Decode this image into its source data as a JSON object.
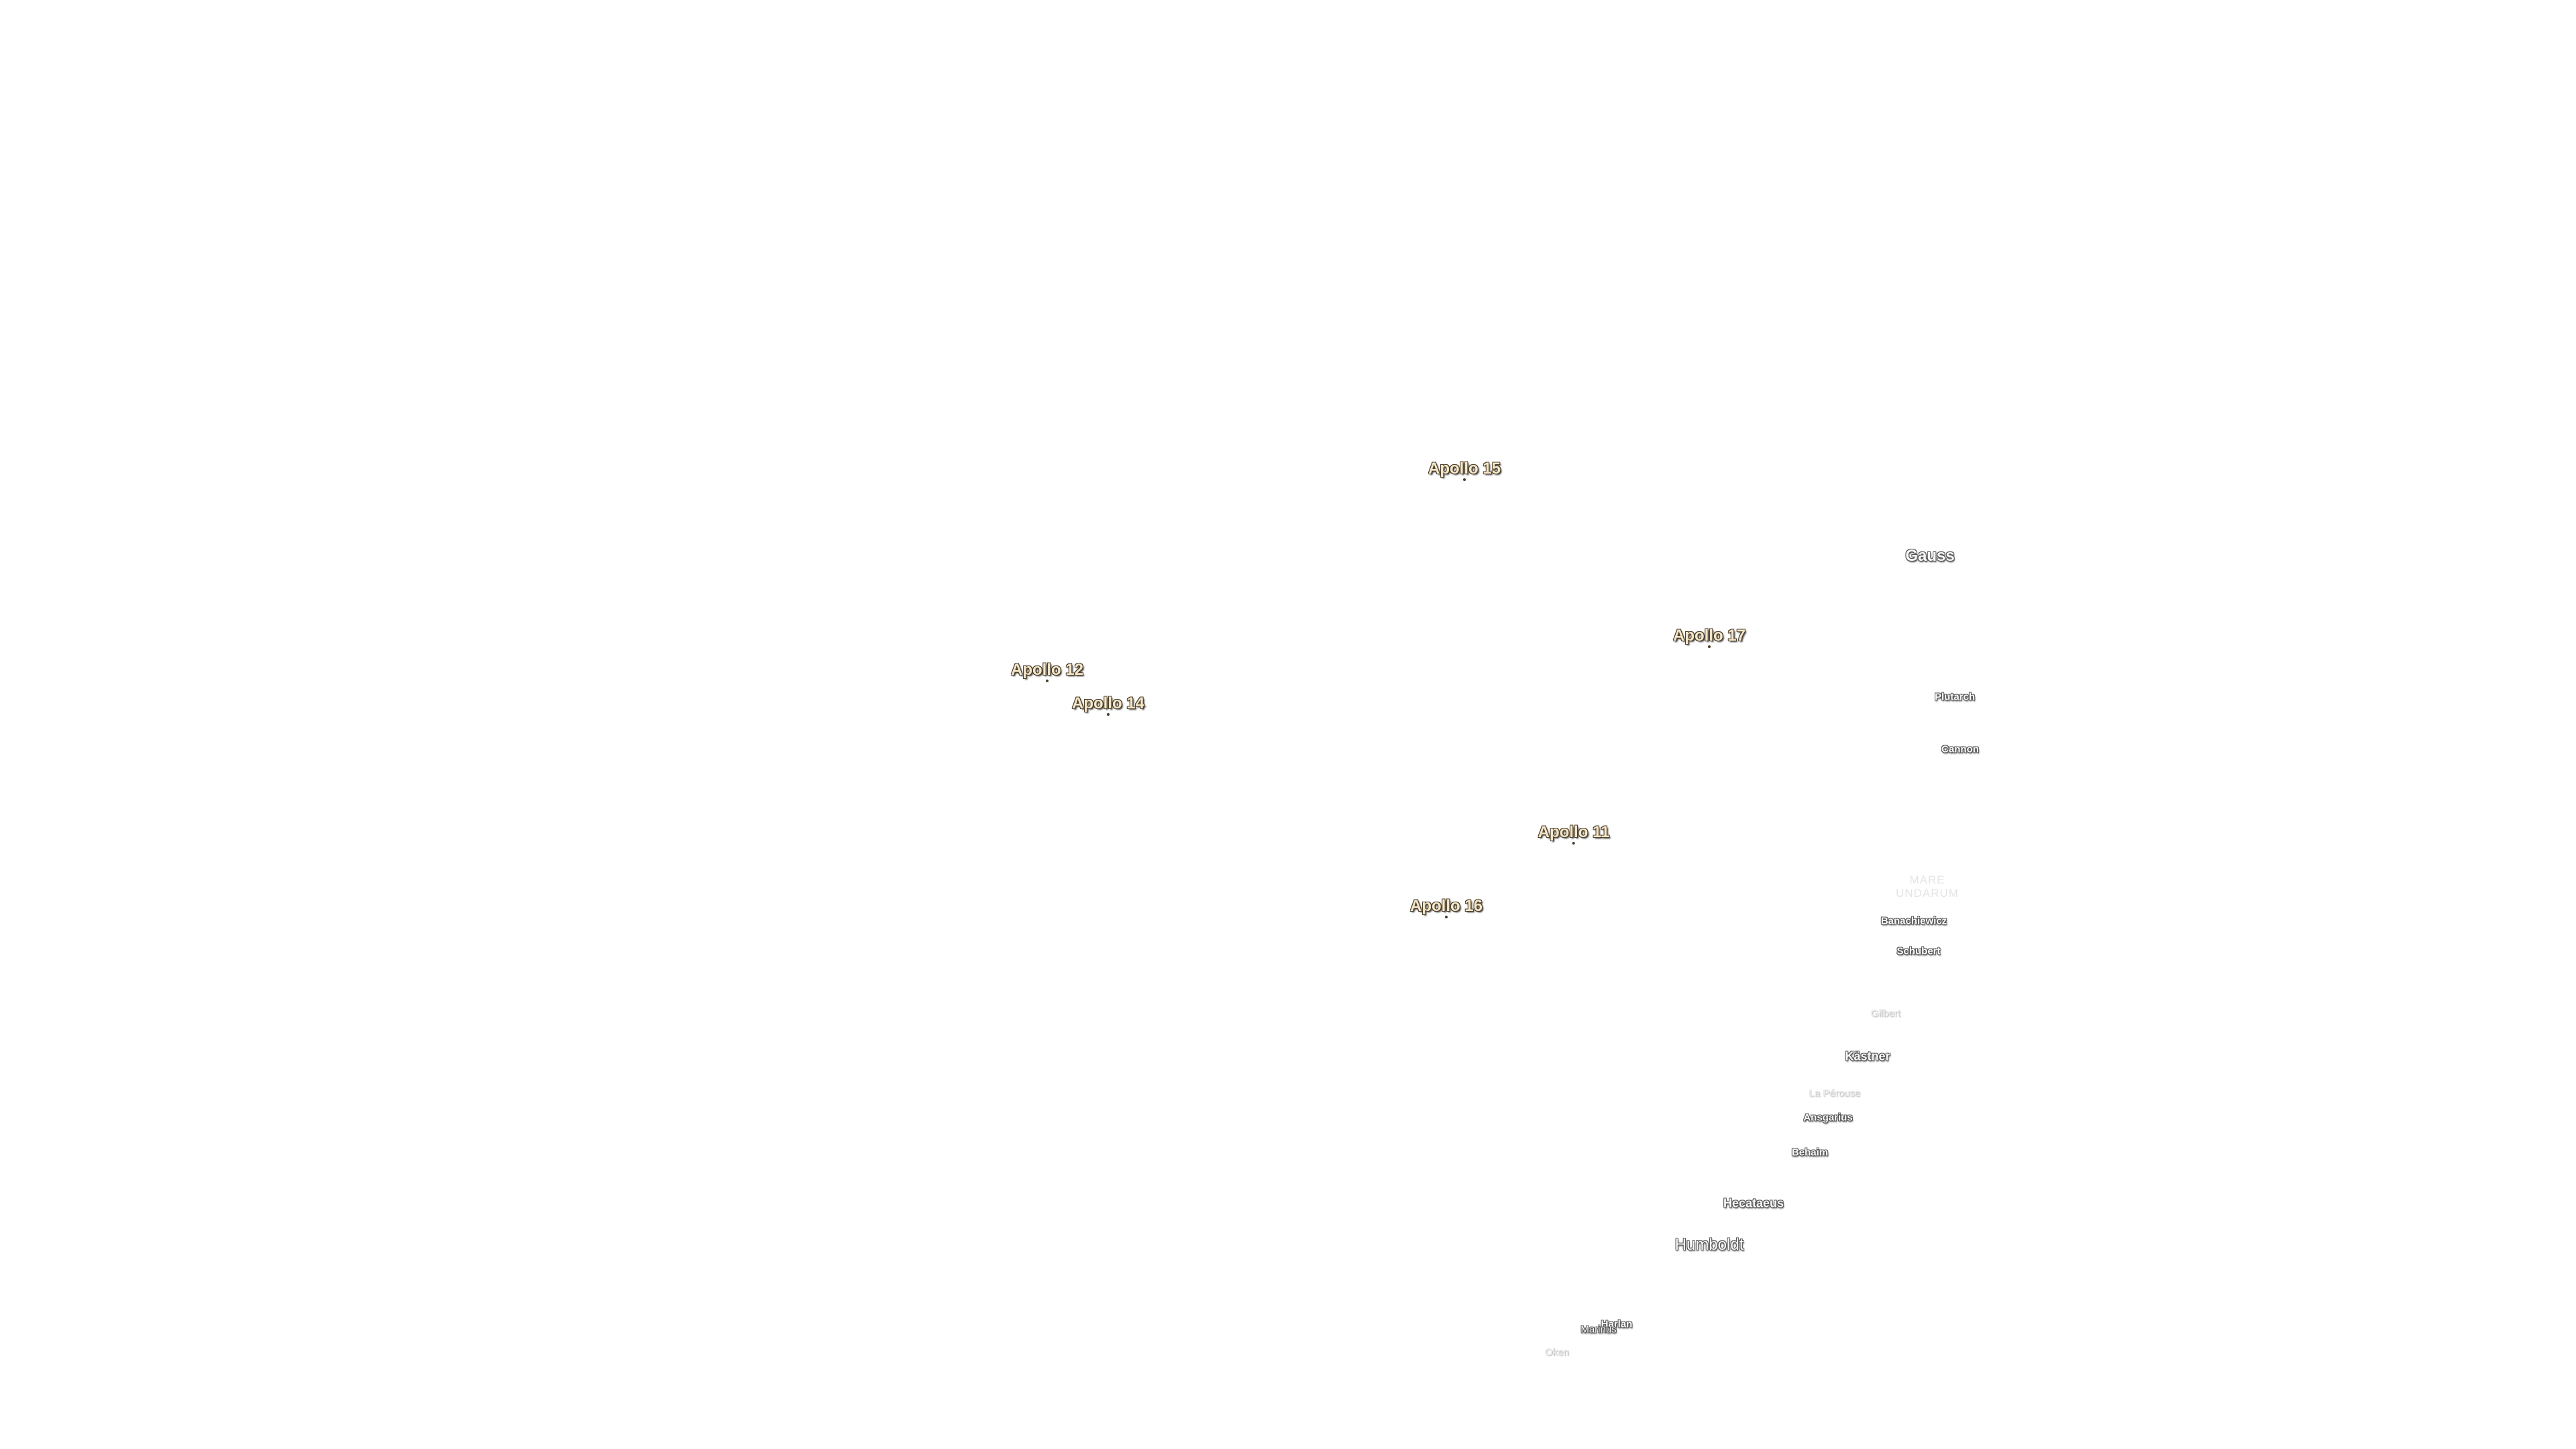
{
  "landing_sites": [
    "Apollo 15",
    "Apollo 17",
    "Apollo 12",
    "Apollo 14",
    "Apollo 11",
    "Apollo 16"
  ],
  "maria": [
    "MARE UNDARUM"
  ],
  "craters": [
    "Gauss",
    "Plutarch",
    "Cannon",
    "Banachiewicz",
    "Schubert",
    "Gilbert",
    "Kästner",
    "La Pérouse",
    "Ansgarius",
    "Behaim",
    "Hecataeus",
    "Humboldt",
    "Harlan",
    "Marinus",
    "Oken"
  ]
}
